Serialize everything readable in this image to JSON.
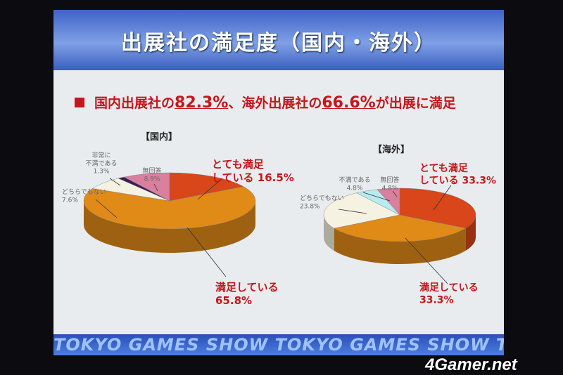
{
  "slide": {
    "title": "出展社の満足度（国内・海外）",
    "headline": {
      "pre": "国内出展社の",
      "dom": "82.3%",
      "mid": "、海外出展社の",
      "ovs": "66.6%",
      "post": "が出展に満足"
    },
    "bottom_band": "TOKYO GAMES SHOW TOKYO GAMES SHOW TOKYO GAMES SHOW"
  },
  "watermark": "4Gamer.net",
  "chart_data": [
    {
      "type": "pie",
      "title": "【国内】",
      "slices": [
        {
          "label": "とても満足している",
          "value": 16.5,
          "color": "#d8461a",
          "display": "とても満足\nしている 16.5%"
        },
        {
          "label": "満足している",
          "value": 65.8,
          "color": "#e08a18",
          "display": "満足している\n65.8%"
        },
        {
          "label": "どちらでもない",
          "value": 7.6,
          "color": "#f6f2e2",
          "display": "どちらでもない\n7.6%"
        },
        {
          "label": "非常に不満である",
          "value": 1.3,
          "color": "#3a1f5a",
          "display": "非常に\n不満である\n1.3%"
        },
        {
          "label": "無回答",
          "value": 8.9,
          "color": "#d9809e",
          "display": "無回答\n8.9%"
        }
      ]
    },
    {
      "type": "pie",
      "title": "【海外】",
      "slices": [
        {
          "label": "とても満足している",
          "value": 33.3,
          "color": "#d8461a",
          "display": "とても満足\nしている 33.3%"
        },
        {
          "label": "満足している",
          "value": 33.3,
          "color": "#e08a18",
          "display": "満足している\n33.3%"
        },
        {
          "label": "どちらでもない",
          "value": 23.8,
          "color": "#f6f2e2",
          "display": "どちらでもない\n23.8%"
        },
        {
          "label": "不満である",
          "value": 4.8,
          "color": "#b6ecf0",
          "display": "不満である\n4.8%"
        },
        {
          "label": "無回答",
          "value": 4.8,
          "color": "#d9809e",
          "display": "無回答\n4.8%"
        }
      ]
    }
  ]
}
